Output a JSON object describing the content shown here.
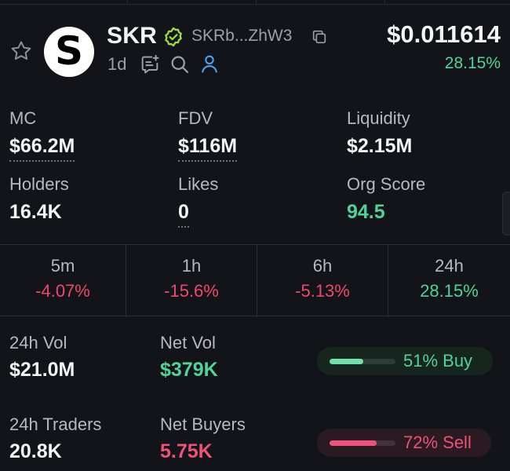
{
  "token": {
    "symbol": "SKR",
    "address": "SKRb...ZhW3",
    "age": "1d",
    "price": "$0.011614",
    "change": "28.15%",
    "logo_letter": "S"
  },
  "stats": {
    "mc": {
      "label": "MC",
      "value": "$66.2M"
    },
    "fdv": {
      "label": "FDV",
      "value": "$116M"
    },
    "liquidity": {
      "label": "Liquidity",
      "value": "$2.15M"
    },
    "holders": {
      "label": "Holders",
      "value": "16.4K"
    },
    "likes": {
      "label": "Likes",
      "value": "0"
    },
    "org_score": {
      "label": "Org Score",
      "value": "94.5"
    }
  },
  "timeframes": [
    {
      "label": "5m",
      "value": "-4.07%"
    },
    {
      "label": "1h",
      "value": "-15.6%"
    },
    {
      "label": "6h",
      "value": "-5.13%"
    },
    {
      "label": "24h",
      "value": "28.15%"
    }
  ],
  "volume": {
    "vol_label": "24h Vol",
    "vol_value": "$21.0M",
    "net_vol_label": "Net Vol",
    "net_vol_value": "$379K",
    "buy_pct": "51% Buy",
    "buy_fraction": 0.51,
    "traders_label": "24h Traders",
    "traders_value": "20.8K",
    "net_buyers_label": "Net Buyers",
    "net_buyers_value": "5.75K",
    "sell_pct": "72% Sell",
    "sell_fraction": 0.72
  },
  "colors": {
    "positive": "#4fd39a",
    "negative": "#ef476f",
    "verified": "#9bdc3c",
    "user_icon": "#4aa3f0"
  },
  "icons": [
    "star-icon",
    "verified-icon",
    "copy-icon",
    "chat-icon",
    "search-icon",
    "user-icon"
  ]
}
